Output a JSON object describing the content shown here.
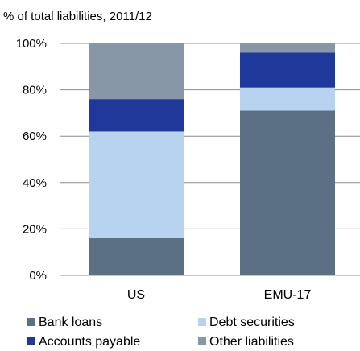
{
  "chart_data": {
    "type": "bar",
    "stacked": true,
    "title": "",
    "subtitle": "% of total liabilities, 2011/12",
    "xlabel": "",
    "ylabel": "",
    "ylim": [
      0,
      100
    ],
    "y_ticks": [
      "0%",
      "20%",
      "40%",
      "60%",
      "80%",
      "100%"
    ],
    "y_tick_values": [
      0,
      20,
      40,
      60,
      80,
      100
    ],
    "grid": true,
    "legend_position": "bottom",
    "categories": [
      "US",
      "EMU-17"
    ],
    "series": [
      {
        "name": "Bank loans",
        "color": "#5b7083",
        "values": [
          16,
          71
        ]
      },
      {
        "name": "Debt securities",
        "color": "#b8d3ef",
        "values": [
          46,
          10
        ]
      },
      {
        "name": "Accounts payable",
        "color": "#1f3899",
        "values": [
          14,
          15
        ]
      },
      {
        "name": "Other liabilities",
        "color": "#8797a8",
        "values": [
          24,
          4
        ]
      }
    ]
  }
}
